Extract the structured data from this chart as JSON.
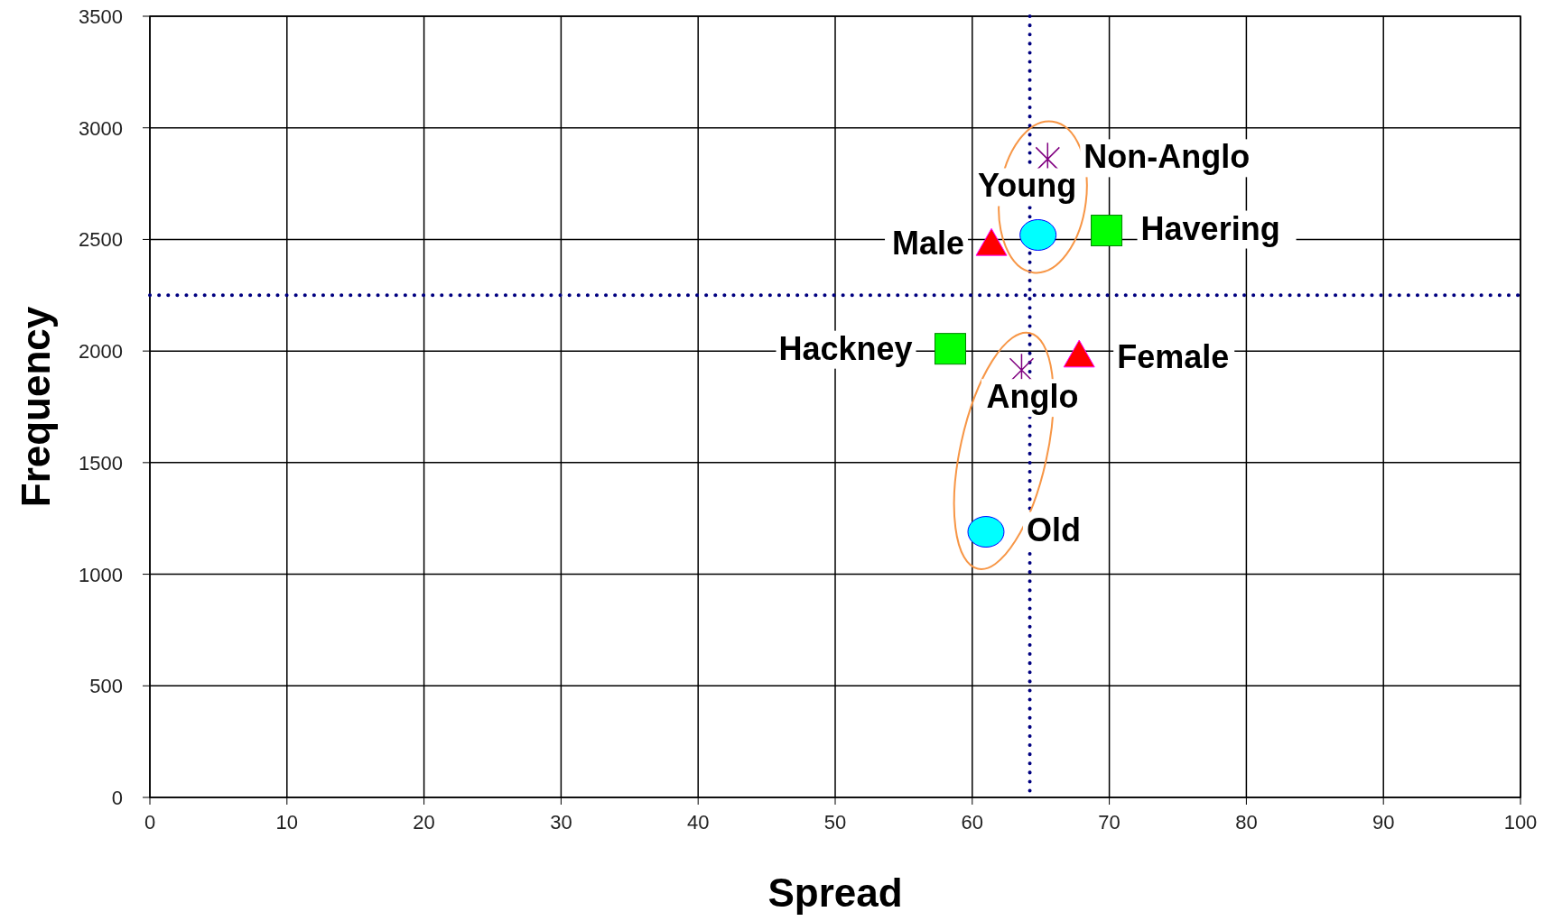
{
  "chart_data": {
    "type": "scatter",
    "xlabel": "Spread",
    "ylabel": "Frequency",
    "xlim": [
      0,
      100
    ],
    "xticks": [
      0,
      10,
      20,
      30,
      40,
      50,
      60,
      70,
      80,
      90,
      100
    ],
    "ylim": [
      0,
      3500
    ],
    "yticks": [
      0,
      500,
      1000,
      1500,
      2000,
      2500,
      3000,
      3500
    ],
    "grid": true,
    "series": [
      {
        "color": "#ff0000",
        "marker": "triangle",
        "x": [
          61.4,
          67.8
        ],
        "values": [
          2480,
          1980
        ]
      },
      {
        "color": "#00ff00",
        "marker": "square",
        "x": [
          69.8,
          58.4
        ],
        "values": [
          2540,
          2010
        ]
      },
      {
        "color": "#00ffff",
        "marker": "circle",
        "x": [
          64.8,
          61.0
        ],
        "values": [
          2520,
          1190
        ]
      },
      {
        "color": "#800080",
        "marker": "cross",
        "x": [
          65.5,
          63.6
        ],
        "values": [
          2860,
          1915
        ]
      }
    ],
    "ref_lines": [
      {
        "axis": "x",
        "value": 64.2,
        "color": "#000080",
        "line_style": "dotted"
      },
      {
        "axis": "y",
        "value": 2250,
        "color": "#000080",
        "line_style": "dotted"
      }
    ],
    "annotations": [
      {
        "text": "Male",
        "x": 61.4,
        "y": 2480
      },
      {
        "text": "Female",
        "x": 67.8,
        "y": 1980
      },
      {
        "text": "Havering",
        "x": 69.8,
        "y": 2540
      },
      {
        "text": "Hackney",
        "x": 58.4,
        "y": 2010
      },
      {
        "text": "Young",
        "x": 64.8,
        "y": 2520
      },
      {
        "text": "Old",
        "x": 61.0,
        "y": 1190
      },
      {
        "text": "Non-Anglo",
        "x": 65.5,
        "y": 2860
      },
      {
        "text": "Anglo",
        "x": 63.6,
        "y": 1915
      }
    ]
  }
}
